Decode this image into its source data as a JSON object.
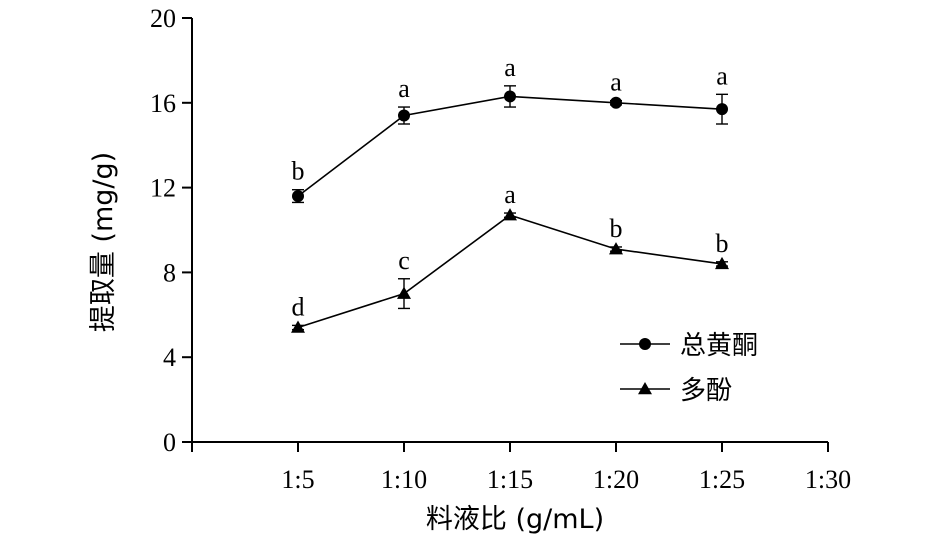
{
  "chart_data": {
    "type": "line",
    "xlabel": "料液比 (g/mL)",
    "ylabel": "提取量 (mg/g)",
    "x_ticks": [
      "1:5",
      "1:10",
      "1:15",
      "1:20",
      "1:25",
      "1:30"
    ],
    "y_ticks": [
      "0",
      "4",
      "8",
      "12",
      "16",
      "20"
    ],
    "ylim": [
      0,
      20
    ],
    "grid": false,
    "legend_position": "bottom-right",
    "categories": [
      "1:5",
      "1:10",
      "1:15",
      "1:20",
      "1:25"
    ],
    "series": [
      {
        "name": "总黄酮",
        "marker": "circle",
        "values": [
          11.6,
          15.4,
          16.3,
          16.0,
          15.7
        ],
        "errors": [
          0.3,
          0.4,
          0.5,
          0.1,
          0.7
        ],
        "labels": [
          "b",
          "a",
          "a",
          "a",
          "a"
        ]
      },
      {
        "name": "多酚",
        "marker": "triangle",
        "values": [
          5.4,
          7.0,
          10.7,
          9.1,
          8.4
        ],
        "errors": [
          0.1,
          0.7,
          0.1,
          0.1,
          0.1
        ],
        "labels": [
          "d",
          "c",
          "a",
          "b",
          "b"
        ]
      }
    ]
  }
}
